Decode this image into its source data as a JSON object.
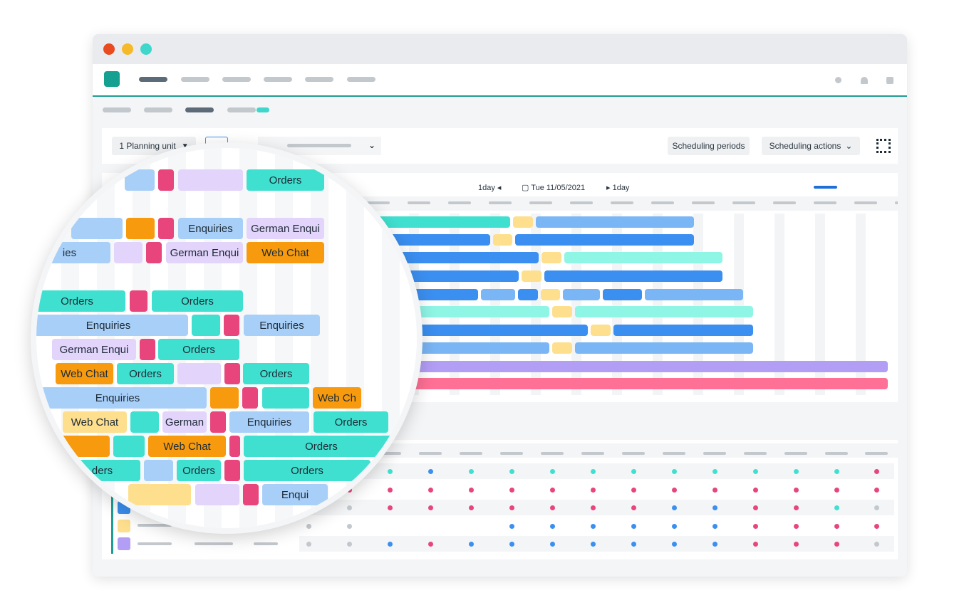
{
  "toolbar": {
    "planning_unit": "1 Planning unit",
    "scheduling_periods": "Scheduling periods",
    "scheduling_actions": "Scheduling actions"
  },
  "date_nav": {
    "prev": "1day",
    "date": "Tue 11/05/2021",
    "next": "1day"
  },
  "magnifier": {
    "labels": [
      "Orders",
      "Enquiries",
      "German Enqui",
      "ies",
      "German Enqui",
      "Web Chat",
      "Orders",
      "Orders",
      "Enquiries",
      "Enquiries",
      "German Enqui",
      "Orders",
      "Web Chat",
      "Orders",
      "Orders",
      "Enquiries",
      "Web Ch",
      "Web Chat",
      "German",
      "Enquiries",
      "Orders",
      "Web Chat",
      "Orders",
      "ders",
      "Orders",
      "Orders",
      "Enqui"
    ]
  }
}
